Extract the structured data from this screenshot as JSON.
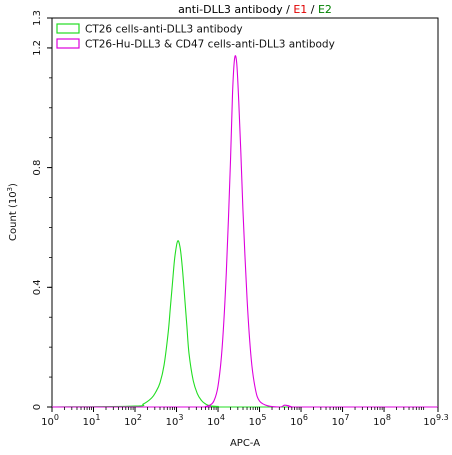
{
  "chart_data": {
    "type": "line",
    "title_parts": [
      {
        "text": "anti-DLL3 antibody / ",
        "color": "#000000"
      },
      {
        "text": "E1",
        "color": "#e00000"
      },
      {
        "text": " / ",
        "color": "#000000"
      },
      {
        "text": "E2",
        "color": "#008000"
      }
    ],
    "xlabel": "APC-A",
    "ylabel": "Count",
    "ylabel_unit_base": "(10",
    "ylabel_unit_exp": "3",
    "ylabel_unit_close": ")",
    "x_scale": "log10",
    "xlim": [
      0,
      9.3
    ],
    "ylim": [
      0,
      1.3
    ],
    "x_ticks": [
      {
        "value": 0,
        "base": "10",
        "exp": "0"
      },
      {
        "value": 1,
        "base": "10",
        "exp": "1"
      },
      {
        "value": 2,
        "base": "10",
        "exp": "2"
      },
      {
        "value": 3,
        "base": "10",
        "exp": "3"
      },
      {
        "value": 4,
        "base": "10",
        "exp": "4"
      },
      {
        "value": 5,
        "base": "10",
        "exp": "5"
      },
      {
        "value": 6,
        "base": "10",
        "exp": "6"
      },
      {
        "value": 7,
        "base": "10",
        "exp": "7"
      },
      {
        "value": 8,
        "base": "10",
        "exp": "8"
      },
      {
        "value": 9.3,
        "base": "10",
        "exp": "9.3"
      }
    ],
    "y_ticks": [
      {
        "value": 0,
        "label": "0"
      },
      {
        "value": 0.4,
        "label": "0.4"
      },
      {
        "value": 0.8,
        "label": "0.8"
      },
      {
        "value": 1.2,
        "label": "1.2"
      },
      {
        "value": 1.3,
        "label": "1.3"
      }
    ],
    "legend_position": "top-left",
    "series": [
      {
        "name": "CT26 cells-anti-DLL3 antibody",
        "color": "#22dd22",
        "x": [
          0,
          2.0,
          2.2,
          2.4,
          2.5,
          2.6,
          2.7,
          2.8,
          2.85,
          2.9,
          2.95,
          3.0,
          3.03,
          3.06,
          3.1,
          3.15,
          3.2,
          3.25,
          3.3,
          3.4,
          3.5,
          3.6,
          3.7,
          3.8,
          4.0,
          4.3,
          9.3
        ],
        "y": [
          0,
          0.003,
          0.01,
          0.03,
          0.05,
          0.08,
          0.14,
          0.25,
          0.33,
          0.41,
          0.49,
          0.54,
          0.555,
          0.55,
          0.52,
          0.45,
          0.36,
          0.27,
          0.18,
          0.09,
          0.045,
          0.022,
          0.01,
          0.004,
          0.002,
          0.0,
          0.0
        ]
      },
      {
        "name": "CT26-Hu-DLL3 & CD47 cells-anti-DLL3 antibody",
        "color": "#dd00dd",
        "x": [
          0,
          3.5,
          3.7,
          3.8,
          3.9,
          4.0,
          4.1,
          4.2,
          4.3,
          4.35,
          4.4,
          4.45,
          4.5,
          4.55,
          4.6,
          4.7,
          4.8,
          4.9,
          5.0,
          5.2,
          5.5,
          5.6,
          5.7,
          5.8,
          6.0,
          9.3
        ],
        "y": [
          0,
          0.0,
          0.002,
          0.006,
          0.02,
          0.07,
          0.2,
          0.45,
          0.82,
          1.05,
          1.165,
          1.15,
          1.02,
          0.85,
          0.66,
          0.36,
          0.16,
          0.06,
          0.02,
          0.004,
          0.0,
          0.006,
          0.004,
          0.0,
          0.0,
          0.0
        ]
      }
    ]
  }
}
